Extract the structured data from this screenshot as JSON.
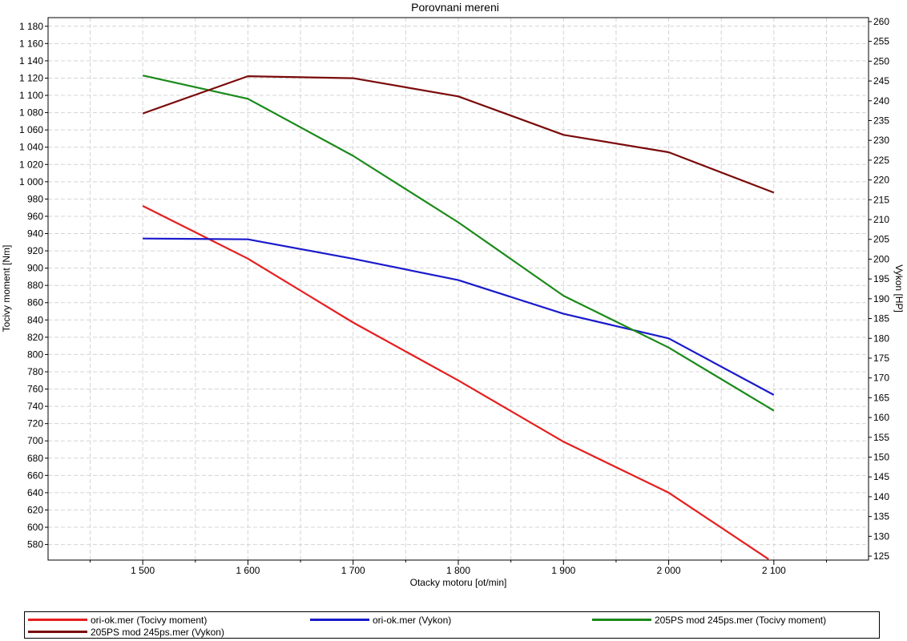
{
  "chart_data": {
    "type": "line",
    "title": "Porovnani mereni",
    "xlabel": "Otacky motoru [ot/min]",
    "ylabel_left": "Tocivy moment [Nm]",
    "ylabel_right": "Vykon [HP]",
    "x": [
      1500,
      1600,
      1700,
      1800,
      1900,
      2000,
      2100
    ],
    "x_tick_labels": [
      "1 500",
      "1 600",
      "1 700",
      "1 800",
      "1 900",
      "2 000",
      "2 100"
    ],
    "xlim": [
      1410,
      2190
    ],
    "ylim_left": [
      562,
      1190
    ],
    "ylim_right": [
      124,
      261
    ],
    "y_left_tick_labels": [
      "580",
      "600",
      "620",
      "640",
      "660",
      "680",
      "700",
      "720",
      "740",
      "760",
      "780",
      "800",
      "820",
      "840",
      "860",
      "880",
      "900",
      "920",
      "940",
      "960",
      "980",
      "1 000",
      "1 020",
      "1 040",
      "1 060",
      "1 080",
      "1 100",
      "1 120",
      "1 140",
      "1 160",
      "1 180"
    ],
    "y_right_tick_labels": [
      "125",
      "130",
      "135",
      "140",
      "145",
      "150",
      "155",
      "160",
      "165",
      "170",
      "175",
      "180",
      "185",
      "190",
      "195",
      "200",
      "205",
      "210",
      "215",
      "220",
      "225",
      "230",
      "235",
      "240",
      "245",
      "250",
      "255",
      "260"
    ],
    "grid": true,
    "legend_position": "bottom",
    "series": [
      {
        "name": "ori-ok.mer  (Tocivy moment)",
        "axis": "left",
        "color": "#e61e1e",
        "x": [
          1500,
          1600,
          1700,
          1800,
          1900,
          2000,
          2095
        ],
        "values": [
          972,
          911,
          837,
          770,
          699,
          640,
          563
        ]
      },
      {
        "name": "ori-ok.mer  (Vykon)",
        "axis": "right",
        "color": "#1a1acc",
        "x": [
          1500,
          1600,
          1700,
          1800,
          1900,
          2000,
          2100
        ],
        "values": [
          205.2,
          205.0,
          200.1,
          194.7,
          186.2,
          180.0,
          165.7
        ]
      },
      {
        "name": "205PS mod 245ps.mer  (Tocivy moment)",
        "axis": "left",
        "color": "#1a8a1a",
        "x": [
          1500,
          1600,
          1700,
          1800,
          1900,
          2000,
          2100
        ],
        "values": [
          1123,
          1096,
          1030,
          953,
          868,
          808,
          735
        ]
      },
      {
        "name": "205PS mod 245ps.mer  (Vykon)",
        "axis": "right",
        "color": "#7a0a0a",
        "x": [
          1500,
          1600,
          1700,
          1800,
          1900,
          2000,
          2100
        ],
        "values": [
          236.8,
          246.2,
          245.7,
          241.1,
          231.4,
          227.0,
          216.8
        ]
      }
    ]
  }
}
